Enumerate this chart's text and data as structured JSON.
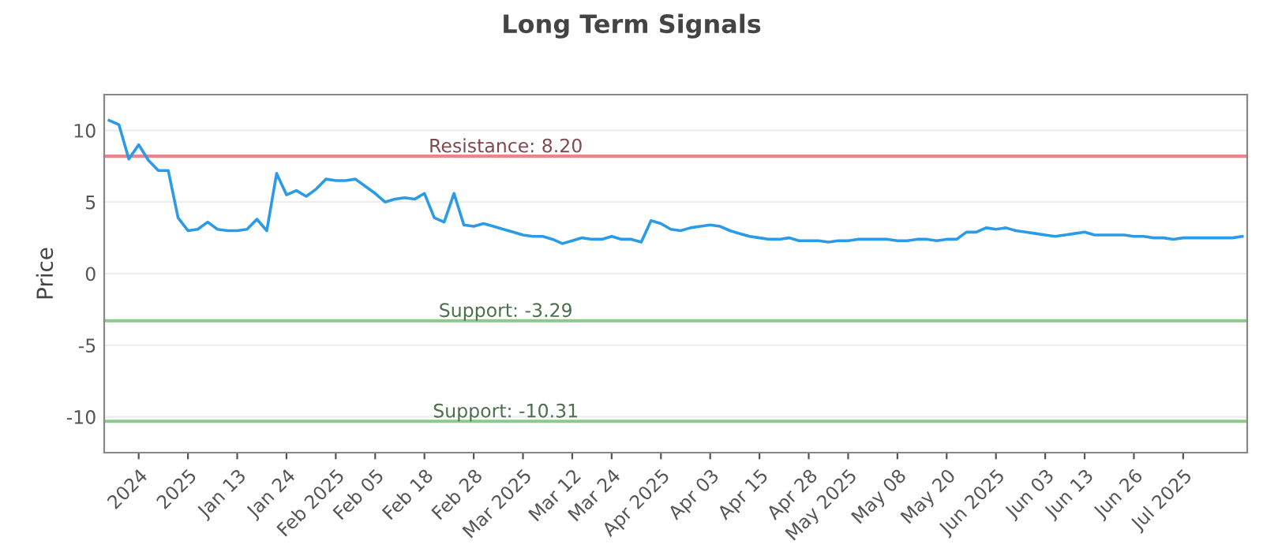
{
  "chart_data": {
    "type": "line",
    "title": "Long Term Signals",
    "ylabel": "Price",
    "categories": [
      null,
      null,
      null,
      "2024",
      null,
      null,
      null,
      null,
      "2025",
      null,
      null,
      null,
      null,
      "Jan 13",
      null,
      null,
      null,
      null,
      "Jan 24",
      null,
      null,
      null,
      null,
      "Feb 2025",
      null,
      null,
      null,
      "Feb 05",
      null,
      null,
      null,
      null,
      "Feb 18",
      null,
      null,
      null,
      null,
      "Feb 28",
      null,
      null,
      null,
      null,
      "Mar 2025",
      null,
      null,
      null,
      null,
      "Mar 12",
      null,
      null,
      null,
      "Mar 24",
      null,
      null,
      null,
      null,
      "Apr 2025",
      null,
      null,
      null,
      null,
      "Apr 03",
      null,
      null,
      null,
      null,
      "Apr 15",
      null,
      null,
      null,
      null,
      "Apr 28",
      null,
      null,
      null,
      "May 2025",
      null,
      null,
      null,
      null,
      "May 08",
      null,
      null,
      null,
      null,
      "May 20",
      null,
      null,
      null,
      null,
      "Jun 2025",
      null,
      null,
      null,
      null,
      "Jun 03",
      null,
      null,
      null,
      "Jun 13",
      null,
      null,
      null,
      null,
      "Jun 26",
      null,
      null,
      null,
      null,
      "Jul 2025",
      null,
      null,
      null,
      null,
      null,
      null
    ],
    "series": [
      {
        "color": "#2b9be8",
        "values": [
          10.7,
          10.4,
          8.0,
          9.0,
          7.9,
          7.2,
          7.2,
          3.9,
          3.0,
          3.1,
          3.6,
          3.1,
          3.0,
          3.0,
          3.1,
          3.8,
          3.0,
          7.0,
          5.5,
          5.8,
          5.4,
          5.9,
          6.6,
          6.5,
          6.5,
          6.6,
          6.1,
          5.6,
          5.0,
          5.2,
          5.3,
          5.2,
          5.6,
          3.9,
          3.6,
          5.6,
          3.4,
          3.3,
          3.5,
          3.3,
          3.1,
          2.9,
          2.7,
          2.6,
          2.6,
          2.4,
          2.1,
          2.3,
          2.5,
          2.4,
          2.4,
          2.6,
          2.4,
          2.4,
          2.2,
          3.7,
          3.5,
          3.1,
          3.0,
          3.2,
          3.3,
          3.4,
          3.3,
          3.0,
          2.8,
          2.6,
          2.5,
          2.4,
          2.4,
          2.5,
          2.3,
          2.3,
          2.3,
          2.2,
          2.3,
          2.3,
          2.4,
          2.4,
          2.4,
          2.4,
          2.3,
          2.3,
          2.4,
          2.4,
          2.3,
          2.4,
          2.4,
          2.9,
          2.9,
          3.2,
          3.1,
          3.2,
          3.0,
          2.9,
          2.8,
          2.7,
          2.6,
          2.7,
          2.8,
          2.9,
          2.7,
          2.7,
          2.7,
          2.7,
          2.6,
          2.6,
          2.5,
          2.5,
          2.4,
          2.5,
          2.5,
          2.5,
          2.5,
          2.5,
          2.5,
          2.6
        ]
      }
    ],
    "ylim": [
      -12.5,
      12.5
    ],
    "yticks": [
      -10,
      -5,
      0,
      5,
      10
    ],
    "grid": "y",
    "marker": "none",
    "line_style": "solid",
    "legend": false,
    "ref_lines": [
      {
        "axis": "y",
        "value": 8.2,
        "label": "Resistance: 8.20",
        "color": "#e8868c"
      },
      {
        "axis": "y",
        "value": -3.29,
        "label": "Support: -3.29",
        "color": "#8cc98c"
      },
      {
        "axis": "y",
        "value": -10.31,
        "label": "Support: -10.31",
        "color": "#8cc98c"
      }
    ]
  }
}
